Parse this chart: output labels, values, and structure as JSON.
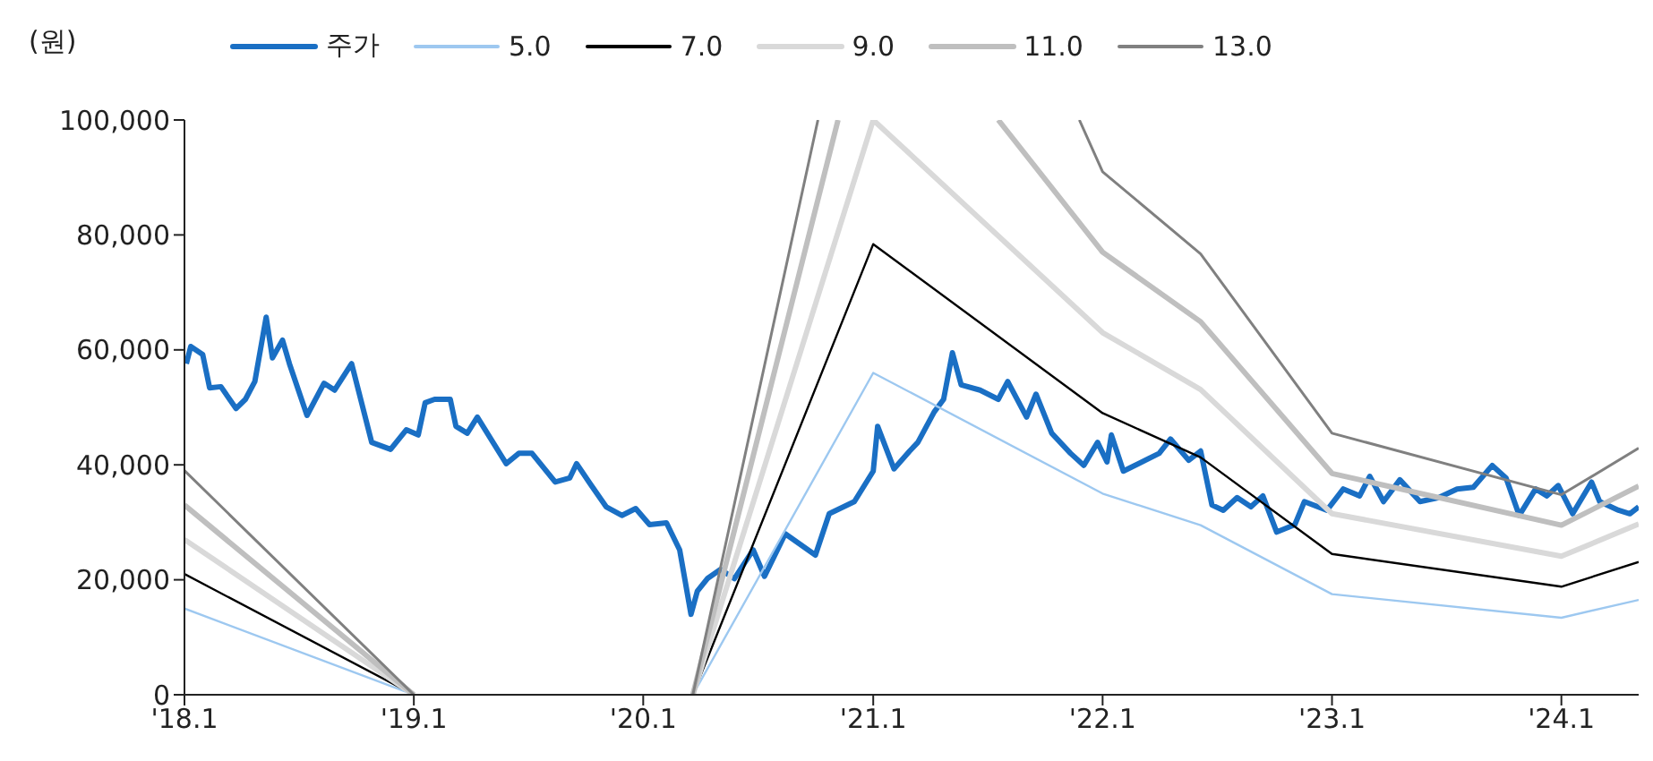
{
  "chart_data": {
    "type": "line",
    "ylabel": "(원)",
    "legend": "top",
    "grid": false,
    "marker": "none",
    "line_style": "solid",
    "xlim": [
      "2018-01-01",
      "2024-05-03"
    ],
    "xticks": [
      {
        "value": "2018-01-01",
        "label": "'18.1"
      },
      {
        "value": "2019-01-01",
        "label": "'19.1"
      },
      {
        "value": "2020-01-01",
        "label": "'20.1"
      },
      {
        "value": "2021-01-01",
        "label": "'21.1"
      },
      {
        "value": "2022-01-01",
        "label": "'22.1"
      },
      {
        "value": "2023-01-01",
        "label": "'23.1"
      },
      {
        "value": "2024-01-01",
        "label": "'24.1"
      }
    ],
    "ylim": [
      0,
      100000
    ],
    "yticks": [
      {
        "value": 0,
        "label": "0"
      },
      {
        "value": 20000,
        "label": "20,000"
      },
      {
        "value": 40000,
        "label": "40,000"
      },
      {
        "value": 60000,
        "label": "60,000"
      },
      {
        "value": 80000,
        "label": "80,000"
      },
      {
        "value": 100000,
        "label": "100,000"
      }
    ],
    "series": [
      {
        "name": "주가",
        "color": "#1a6fc4",
        "x": [
          "2018-01-04",
          "2018-01-11",
          "2018-01-30",
          "2018-02-10",
          "2018-02-28",
          "2018-03-24",
          "2018-04-08",
          "2018-04-23",
          "2018-05-11",
          "2018-05-21",
          "2018-06-06",
          "2018-06-17",
          "2018-07-15",
          "2018-08-11",
          "2018-08-28",
          "2018-09-24",
          "2018-10-26",
          "2018-11-25",
          "2018-12-20",
          "2019-01-08",
          "2019-01-19",
          "2019-02-03",
          "2019-02-28",
          "2019-03-09",
          "2019-03-27",
          "2019-04-12",
          "2019-05-28",
          "2019-06-17",
          "2019-07-08",
          "2019-08-14",
          "2019-09-06",
          "2019-09-17",
          "2019-10-08",
          "2019-11-03",
          "2019-11-28",
          "2019-12-20",
          "2020-01-11",
          "2020-02-07",
          "2020-02-28",
          "2020-03-17",
          "2020-03-27",
          "2020-04-12",
          "2020-05-03",
          "2020-05-25",
          "2020-06-24",
          "2020-07-12",
          "2020-08-14",
          "2020-10-01",
          "2020-10-23",
          "2020-12-02",
          "2021-01-01",
          "2021-01-08",
          "2021-02-03",
          "2021-02-28",
          "2021-03-13",
          "2021-04-08",
          "2021-04-23",
          "2021-05-07",
          "2021-05-21",
          "2021-06-20",
          "2021-07-19",
          "2021-08-03",
          "2021-09-02",
          "2021-09-17",
          "2021-10-12",
          "2021-11-11",
          "2021-12-02",
          "2021-12-24",
          "2022-01-08",
          "2022-01-15",
          "2022-02-03",
          "2022-04-01",
          "2022-04-19",
          "2022-05-18",
          "2022-06-06",
          "2022-06-24",
          "2022-07-12",
          "2022-08-03",
          "2022-08-25",
          "2022-09-13",
          "2022-10-05",
          "2022-11-03",
          "2022-11-18",
          "2022-12-24",
          "2023-01-19",
          "2023-02-14",
          "2023-03-02",
          "2023-03-24",
          "2023-04-19",
          "2023-05-21",
          "2023-06-20",
          "2023-07-19",
          "2023-08-14",
          "2023-09-13",
          "2023-10-05",
          "2023-10-26",
          "2023-11-21",
          "2023-12-09",
          "2023-12-27",
          "2024-01-19",
          "2024-02-18",
          "2024-03-02",
          "2024-04-01",
          "2024-04-19",
          "2024-05-03"
        ],
        "values": [
          57600,
          60600,
          59200,
          53400,
          53600,
          49800,
          51400,
          54500,
          65700,
          58600,
          61700,
          57600,
          48600,
          54200,
          53000,
          57600,
          43900,
          42700,
          46100,
          45200,
          50800,
          51400,
          51400,
          46700,
          45500,
          48300,
          40200,
          42000,
          42000,
          37000,
          37700,
          40200,
          36800,
          32700,
          31200,
          32400,
          29600,
          29900,
          25200,
          14000,
          18000,
          20200,
          21800,
          20200,
          25200,
          20600,
          28000,
          24300,
          31500,
          33600,
          38900,
          46700,
          39300,
          42400,
          43900,
          49200,
          51400,
          59500,
          53900,
          53000,
          51400,
          54500,
          48300,
          52300,
          45500,
          42000,
          39900,
          43900,
          40500,
          45200,
          38900,
          42000,
          44500,
          40800,
          42400,
          33000,
          32100,
          34300,
          32700,
          34600,
          28300,
          29600,
          33600,
          32100,
          35800,
          34600,
          38000,
          33600,
          37400,
          33600,
          34300,
          35800,
          36100,
          39900,
          37700,
          31200,
          35800,
          34600,
          36400,
          31500,
          37000,
          33600,
          32100,
          31500,
          32700
        ]
      },
      {
        "name": "5.0",
        "color": "#9dc8f0",
        "x": [
          "2018-01-01",
          "2019-01-01",
          "2019-07-01",
          "2020-03-20",
          "2021-01-01",
          "2022-01-01",
          "2022-06-06",
          "2023-01-01",
          "2024-01-01",
          "2024-05-03"
        ],
        "values": [
          15000,
          0,
          null,
          0,
          56000,
          35000,
          29500,
          17500,
          13400,
          16500
        ]
      },
      {
        "name": "7.0",
        "color": "#000000",
        "x": [
          "2018-01-01",
          "2019-01-01",
          "2019-07-01",
          "2020-03-20",
          "2021-01-01",
          "2022-01-01",
          "2022-06-06",
          "2023-01-01",
          "2024-01-01",
          "2024-05-03"
        ],
        "values": [
          21000,
          0,
          null,
          0,
          78400,
          49000,
          41300,
          24500,
          18800,
          23100
        ]
      },
      {
        "name": "9.0",
        "color": "#d9d9d9",
        "x": [
          "2018-01-01",
          "2019-01-01",
          "2019-07-01",
          "2020-03-20",
          "2021-01-01",
          "2022-01-01",
          "2022-06-06",
          "2023-01-01",
          "2024-01-01",
          "2024-05-03"
        ],
        "values": [
          27000,
          0,
          null,
          0,
          100000,
          63000,
          53100,
          31500,
          24100,
          29700
        ]
      },
      {
        "name": "11.0",
        "color": "#bfbfbf",
        "x": [
          "2018-01-01",
          "2019-01-01",
          "2019-07-01",
          "2020-03-20",
          "2020-11-06",
          "2021-03-13",
          "2021-07-19",
          "2022-01-01",
          "2022-06-06",
          "2023-01-01",
          "2024-01-01",
          "2024-05-03"
        ],
        "values": [
          33000,
          0,
          null,
          0,
          100000,
          null,
          100000,
          77000,
          64900,
          38500,
          29500,
          36300
        ]
      },
      {
        "name": "13.0",
        "color": "#808080",
        "x": [
          "2018-01-01",
          "2019-01-01",
          "2019-07-01",
          "2020-03-20",
          "2020-10-05",
          "2021-04-19",
          "2021-11-25",
          "2022-01-01",
          "2022-06-06",
          "2023-01-01",
          "2024-01-01",
          "2024-05-03"
        ],
        "values": [
          39000,
          0,
          null,
          0,
          100000,
          null,
          100000,
          91000,
          76700,
          45500,
          34800,
          42900
        ]
      }
    ]
  }
}
